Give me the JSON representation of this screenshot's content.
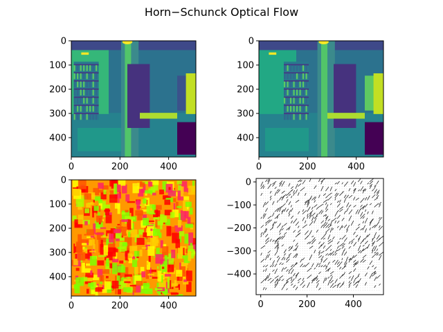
{
  "figure": {
    "title": "Horn−Schunck Optical Flow"
  },
  "chart_data": [
    {
      "type": "heatmap",
      "panel": "top-left",
      "description_colormap": "viridis",
      "xlim": [
        0,
        512
      ],
      "ylim": [
        480,
        0
      ],
      "xticks": [
        0,
        200,
        400
      ],
      "xtick_labels": [
        "0",
        "200",
        "400"
      ],
      "yticks": [
        0,
        100,
        200,
        300,
        400
      ],
      "ytick_labels": [
        "0",
        "100",
        "200",
        "300",
        "400"
      ]
    },
    {
      "type": "heatmap",
      "panel": "top-right",
      "description_colormap": "viridis",
      "xlim": [
        0,
        512
      ],
      "ylim": [
        480,
        0
      ],
      "xticks": [
        0,
        200,
        400
      ],
      "xtick_labels": [
        "0",
        "200",
        "400"
      ],
      "yticks": [
        0,
        100,
        200,
        300,
        400
      ],
      "ytick_labels": [
        "0",
        "100",
        "200",
        "300",
        "400"
      ]
    },
    {
      "type": "heatmap",
      "panel": "bottom-left",
      "description_colormap": "prism",
      "xlim": [
        0,
        512
      ],
      "ylim": [
        480,
        0
      ],
      "xticks": [
        0,
        200,
        400
      ],
      "xtick_labels": [
        "0",
        "200",
        "400"
      ],
      "yticks": [
        0,
        100,
        200,
        300,
        400
      ],
      "ytick_labels": [
        "0",
        "100",
        "200",
        "300",
        "400"
      ]
    },
    {
      "type": "scatter",
      "panel": "bottom-right",
      "description": "quiver field of flow vectors",
      "xlim": [
        -20,
        530
      ],
      "ylim": [
        -490,
        15
      ],
      "xticks": [
        0,
        200,
        400
      ],
      "xtick_labels": [
        "0",
        "200",
        "400"
      ],
      "yticks": [
        0,
        -100,
        -200,
        -300,
        -400
      ],
      "ytick_labels": [
        "0",
        "−100",
        "−200",
        "−300",
        "−400"
      ]
    }
  ],
  "colors": {
    "viridis_dark": "#3b0f6f",
    "viridis_mid": "#21918c",
    "viridis_light": "#fde725",
    "prism_red": "#ff0000",
    "prism_yellow": "#ffff00",
    "prism_green": "#7fff00"
  }
}
